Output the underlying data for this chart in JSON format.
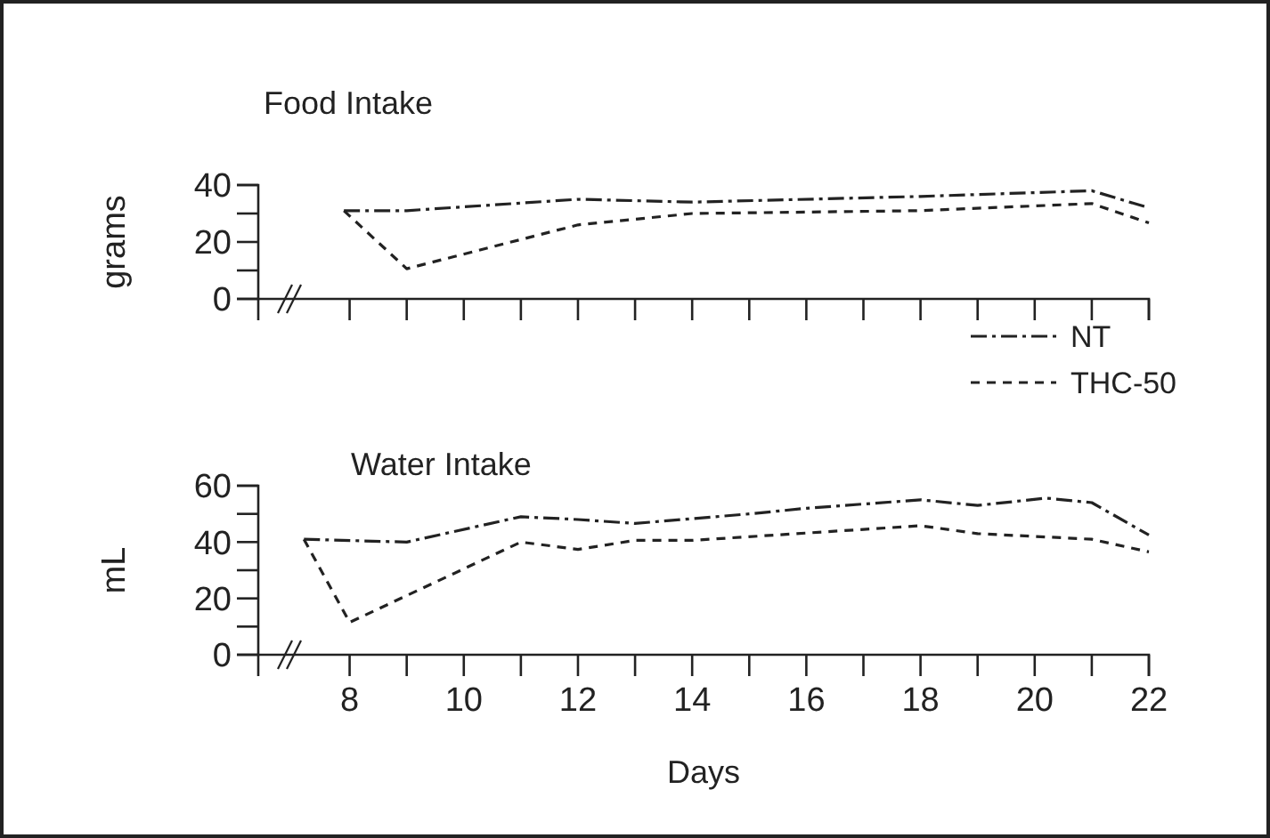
{
  "chart_data": [
    {
      "type": "line",
      "title": "Food Intake",
      "ylabel": "grams",
      "xlim": [
        6.4,
        22
      ],
      "xticks": [
        8,
        9,
        10,
        11,
        12,
        13,
        14,
        15,
        16,
        17,
        18,
        19,
        20,
        21,
        22
      ],
      "ylim": [
        0,
        40
      ],
      "yticks": [
        0,
        {
          "value": 10,
          "label": null
        },
        20,
        {
          "value": 30,
          "label": null
        },
        40
      ],
      "tick_labels": "y",
      "legend": false,
      "grid": false,
      "series": [
        {
          "color": "#222222",
          "line_style": "dashdot",
          "x": [
            7.9,
            9,
            12,
            14,
            18,
            21,
            22
          ],
          "values": [
            31,
            31,
            35,
            34,
            36,
            38,
            32
          ]
        },
        {
          "color": "#222222",
          "line_style": "dashed",
          "x": [
            7.9,
            9,
            12,
            14,
            18,
            21,
            22
          ],
          "values": [
            31,
            10.6,
            26,
            30,
            31,
            33.5,
            26.7
          ]
        }
      ]
    },
    {
      "type": "line",
      "title": "Water Intake",
      "ylabel": "mL",
      "xlabel": "Days",
      "xlim": [
        6.4,
        22
      ],
      "xticks": [
        {
          "value": 8,
          "label": "8"
        },
        {
          "value": 9,
          "label": null
        },
        10,
        {
          "value": 11,
          "label": null
        },
        12,
        {
          "value": 13,
          "label": null
        },
        14,
        {
          "value": 15,
          "label": null
        },
        16,
        {
          "value": 17,
          "label": null
        },
        18,
        {
          "value": 19,
          "label": null
        },
        20,
        {
          "value": 21,
          "label": null
        },
        22
      ],
      "ylim": [
        0,
        60
      ],
      "yticks": [
        0,
        {
          "value": 10,
          "label": null
        },
        20,
        {
          "value": 30,
          "label": null
        },
        40,
        {
          "value": 50,
          "label": null
        },
        60
      ],
      "legend": "top right",
      "grid": false,
      "series": [
        {
          "name": "NT",
          "color": "#222222",
          "line_style": "dashdot",
          "x": [
            7.2,
            9,
            11,
            12,
            13,
            15,
            16,
            18,
            19,
            20.2,
            21,
            22
          ],
          "values": [
            41,
            40,
            49,
            48,
            46.6,
            50,
            52,
            55,
            53,
            55.6,
            54,
            42.5
          ]
        },
        {
          "name": "THC-50",
          "color": "#222222",
          "line_style": "dashed",
          "x": [
            7.2,
            8,
            11,
            12,
            13,
            14,
            18,
            19,
            21,
            22
          ],
          "values": [
            41,
            11.5,
            40,
            37.4,
            40.6,
            40.6,
            45.8,
            43,
            41,
            36.5
          ]
        }
      ]
    }
  ]
}
